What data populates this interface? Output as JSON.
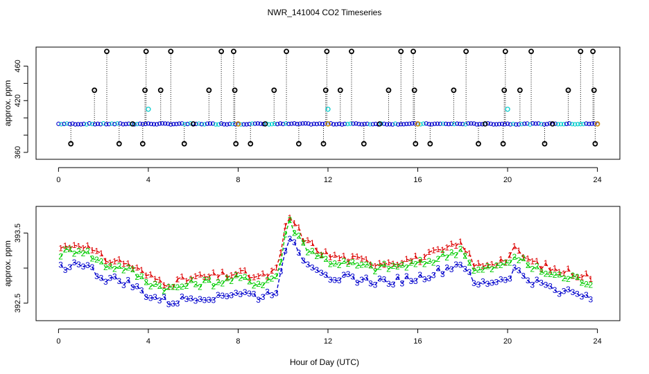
{
  "title": "NWR_141004  CO2 Timeseries",
  "xlabel": "Hour of Day (UTC)",
  "colors": {
    "black": "#000000",
    "blue": "#0000cc",
    "cyan": "#00cccc",
    "red": "#dd0000",
    "green": "#00cc00",
    "orange": "#cc8800"
  },
  "chart_data": [
    {
      "type": "scatter",
      "name": "top-panel",
      "ylabel": "approx. ppm",
      "xlim": [
        -1.0,
        25.0
      ],
      "ylim": [
        352,
        482
      ],
      "xticks": [
        0,
        4,
        8,
        12,
        16,
        20,
        24
      ],
      "yticks": [
        360,
        380,
        400,
        420,
        440,
        460
      ],
      "ytick_labels": [
        "360",
        "",
        "",
        "420",
        "",
        "460"
      ],
      "xtick_labels": [
        "0",
        "4",
        "8",
        "12",
        "16",
        "20",
        "24"
      ],
      "baseline": 393,
      "spike_high_values": [
        477,
        432,
        370
      ],
      "cyan_points": [
        [
          4.0,
          410
        ],
        [
          12.0,
          410
        ],
        [
          20.0,
          410
        ]
      ],
      "spikes": [
        {
          "x": 0.55,
          "y": 370
        },
        {
          "x": 1.6,
          "y": 432
        },
        {
          "x": 2.15,
          "y": 477
        },
        {
          "x": 2.7,
          "y": 370
        },
        {
          "x": 3.75,
          "y": 370
        },
        {
          "x": 3.85,
          "y": 432
        },
        {
          "x": 3.9,
          "y": 477
        },
        {
          "x": 4.55,
          "y": 432
        },
        {
          "x": 5.0,
          "y": 477
        },
        {
          "x": 5.6,
          "y": 370
        },
        {
          "x": 6.7,
          "y": 432
        },
        {
          "x": 7.25,
          "y": 477
        },
        {
          "x": 7.8,
          "y": 477
        },
        {
          "x": 7.85,
          "y": 432
        },
        {
          "x": 7.9,
          "y": 370
        },
        {
          "x": 8.55,
          "y": 370
        },
        {
          "x": 9.6,
          "y": 432
        },
        {
          "x": 10.15,
          "y": 477
        },
        {
          "x": 10.7,
          "y": 370
        },
        {
          "x": 11.8,
          "y": 370
        },
        {
          "x": 11.9,
          "y": 432
        },
        {
          "x": 11.95,
          "y": 477
        },
        {
          "x": 12.55,
          "y": 432
        },
        {
          "x": 13.05,
          "y": 477
        },
        {
          "x": 13.6,
          "y": 370
        },
        {
          "x": 14.7,
          "y": 432
        },
        {
          "x": 15.25,
          "y": 477
        },
        {
          "x": 15.8,
          "y": 477
        },
        {
          "x": 15.85,
          "y": 432
        },
        {
          "x": 15.9,
          "y": 370
        },
        {
          "x": 16.55,
          "y": 370
        },
        {
          "x": 17.6,
          "y": 432
        },
        {
          "x": 18.15,
          "y": 477
        },
        {
          "x": 18.7,
          "y": 370
        },
        {
          "x": 19.8,
          "y": 370
        },
        {
          "x": 19.85,
          "y": 432
        },
        {
          "x": 19.9,
          "y": 477
        },
        {
          "x": 20.55,
          "y": 432
        },
        {
          "x": 21.05,
          "y": 477
        },
        {
          "x": 21.65,
          "y": 370
        },
        {
          "x": 22.7,
          "y": 432
        },
        {
          "x": 23.25,
          "y": 477
        },
        {
          "x": 23.8,
          "y": 477
        },
        {
          "x": 23.85,
          "y": 432
        },
        {
          "x": 23.9,
          "y": 370
        }
      ]
    },
    {
      "type": "line",
      "name": "bottom-panel",
      "ylabel": "approx. ppm",
      "xlim": [
        -1.0,
        25.0
      ],
      "ylim": [
        392.25,
        393.88
      ],
      "xticks": [
        0,
        4,
        8,
        12,
        16,
        20,
        24
      ],
      "xtick_labels": [
        "0",
        "4",
        "8",
        "12",
        "16",
        "20",
        "24"
      ],
      "yticks": [
        392.5,
        393.0,
        393.5
      ],
      "ytick_labels": [
        "392.5",
        "",
        "393.5"
      ],
      "series": [
        {
          "name": "1",
          "color": "#dd0000",
          "offset": 0.08
        },
        {
          "name": "2",
          "color": "#00cc00",
          "offset": 0.0
        },
        {
          "name": "3",
          "color": "#0000cc",
          "offset": -0.2
        }
      ],
      "base_curve": [
        [
          0.0,
          393.2
        ],
        [
          1.0,
          393.28
        ],
        [
          2.0,
          393.05
        ],
        [
          3.0,
          393.0
        ],
        [
          3.5,
          392.9
        ],
        [
          4.0,
          392.8
        ],
        [
          5.0,
          392.7
        ],
        [
          6.0,
          392.78
        ],
        [
          7.0,
          392.8
        ],
        [
          8.0,
          392.85
        ],
        [
          9.0,
          392.78
        ],
        [
          9.8,
          392.9
        ],
        [
          10.2,
          393.7
        ],
        [
          10.6,
          393.5
        ],
        [
          11.0,
          393.3
        ],
        [
          12.0,
          393.1
        ],
        [
          13.0,
          393.05
        ],
        [
          14.0,
          393.0
        ],
        [
          15.0,
          393.02
        ],
        [
          16.0,
          393.05
        ],
        [
          17.0,
          393.15
        ],
        [
          18.0,
          393.28
        ],
        [
          18.5,
          392.95
        ],
        [
          19.0,
          392.98
        ],
        [
          20.0,
          393.05
        ],
        [
          20.3,
          393.18
        ],
        [
          21.0,
          393.02
        ],
        [
          22.0,
          392.9
        ],
        [
          23.0,
          392.85
        ],
        [
          24.0,
          392.78
        ]
      ]
    }
  ]
}
